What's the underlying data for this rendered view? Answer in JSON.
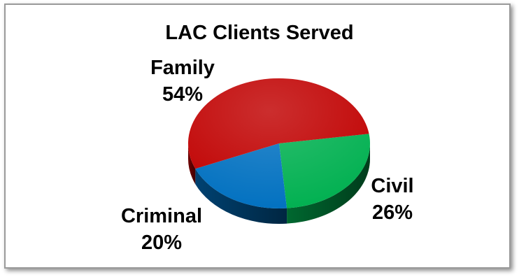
{
  "chart_data": {
    "type": "pie",
    "title": "LAC Clients Served",
    "slices": [
      {
        "label": "Family",
        "value": 54,
        "value_label": "54%",
        "color": "#c00000"
      },
      {
        "label": "Civil",
        "value": 26,
        "value_label": "26%",
        "color": "#00b050"
      },
      {
        "label": "Criminal",
        "value": 20,
        "value_label": "20%",
        "color": "#0070c0"
      }
    ],
    "style": "3d"
  }
}
